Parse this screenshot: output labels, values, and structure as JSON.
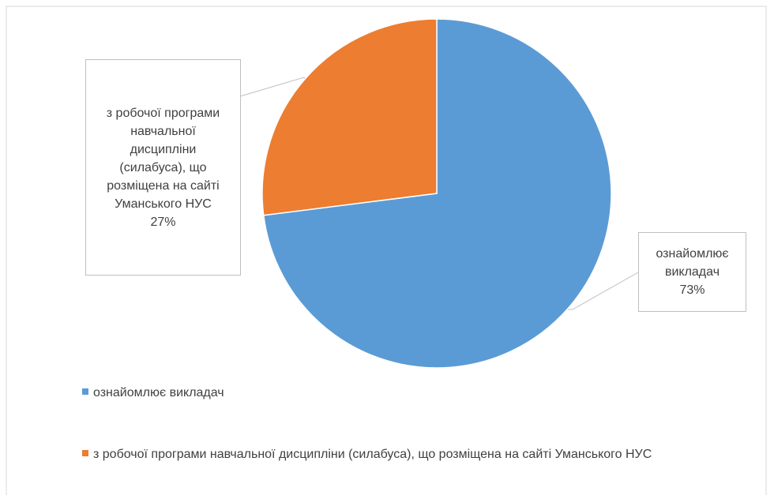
{
  "chart_data": {
    "type": "pie",
    "categories": [
      "ознайомлює викладач",
      "з робочої програми навчальної дисципліни (силабуса), що розміщена на сайті Уманського НУС"
    ],
    "values": [
      73,
      27
    ],
    "value_labels": [
      "73%",
      "27%"
    ],
    "colors": [
      "#5b9bd5",
      "#ed7d31"
    ],
    "legend": "bottom"
  }
}
